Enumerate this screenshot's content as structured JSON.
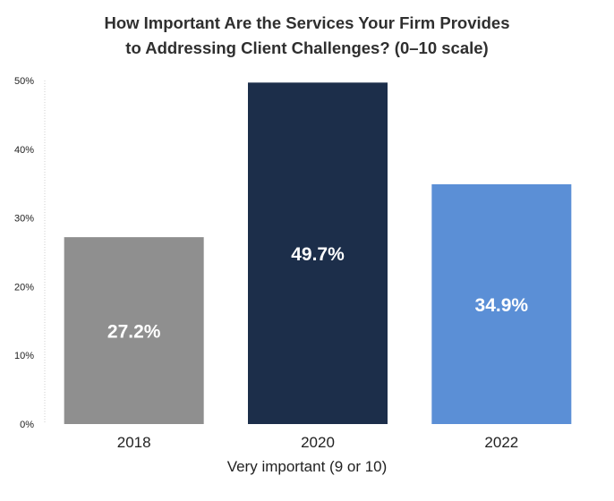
{
  "chart_data": {
    "type": "bar",
    "title_line1": "How Important Are the Services Your Firm Provides",
    "title_line2": "to Addressing Client Challenges? (0–10 scale)",
    "xlabel": "Very important (9 or 10)",
    "ylabel": "",
    "categories": [
      "2018",
      "2020",
      "2022"
    ],
    "values": [
      27.2,
      49.7,
      34.9
    ],
    "data_labels": [
      "27.2%",
      "49.7%",
      "34.9%"
    ],
    "colors": [
      "#8f8f8f",
      "#1c2e4a",
      "#5b8fd6"
    ],
    "ylim": [
      0,
      50
    ],
    "yticks": [
      0,
      10,
      20,
      30,
      40,
      50
    ],
    "ytick_labels": [
      "0%",
      "10%",
      "20%",
      "30%",
      "40%",
      "50%"
    ],
    "grid": false,
    "legend": "none"
  }
}
